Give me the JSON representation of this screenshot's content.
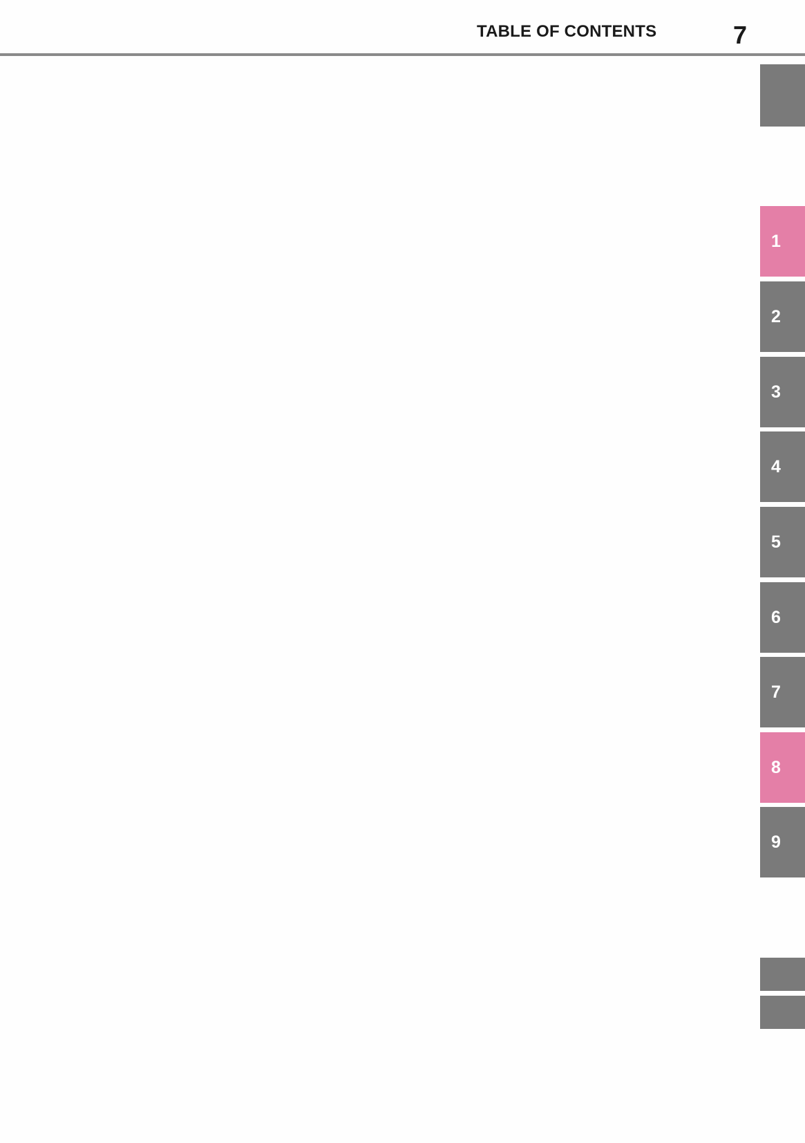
{
  "header": {
    "title": "TABLE OF CONTENTS",
    "page_number": "7"
  },
  "colors": {
    "tab_gray": "#7a7a7a",
    "tab_highlight": "#e47fa7",
    "rule": "#8a8a8a"
  },
  "tabs": [
    {
      "label": "",
      "highlighted": false
    },
    {
      "label": "1",
      "highlighted": true
    },
    {
      "label": "2",
      "highlighted": false
    },
    {
      "label": "3",
      "highlighted": false
    },
    {
      "label": "4",
      "highlighted": false
    },
    {
      "label": "5",
      "highlighted": false
    },
    {
      "label": "6",
      "highlighted": false
    },
    {
      "label": "7",
      "highlighted": false
    },
    {
      "label": "8",
      "highlighted": true
    },
    {
      "label": "9",
      "highlighted": false
    },
    {
      "label": "",
      "highlighted": false
    },
    {
      "label": "",
      "highlighted": false
    }
  ]
}
